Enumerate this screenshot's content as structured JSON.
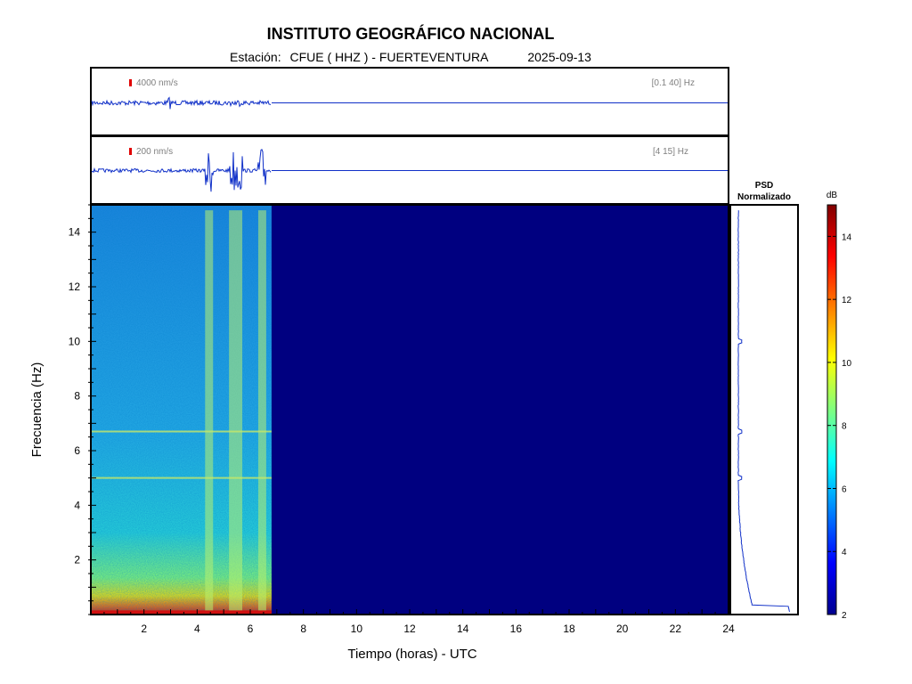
{
  "header": {
    "institution": "INSTITUTO GEOGRÁFICO NACIONAL",
    "station_label": "Estación:",
    "station": "CFUE ( HHZ ) - FUERTEVENTURA",
    "date": "2025-09-13"
  },
  "traces": [
    {
      "scale": "4000 nm/s",
      "band": "[0.1 40] Hz"
    },
    {
      "scale": "200 nm/s",
      "band": "[4 15] Hz"
    }
  ],
  "psd": {
    "title_line1": "PSD",
    "title_line2": "Normalizado"
  },
  "colorbar": {
    "unit": "dB",
    "ticks": [
      "2",
      "4",
      "6",
      "8",
      "10",
      "12",
      "14"
    ]
  },
  "chart_data": {
    "type": "heatmap",
    "xlabel": "Tiempo (horas) - UTC",
    "ylabel": "Frecuencia  (Hz)",
    "xlim": [
      0,
      24
    ],
    "ylim": [
      0,
      15
    ],
    "xticks": [
      2,
      4,
      6,
      8,
      10,
      12,
      14,
      16,
      18,
      20,
      22,
      24
    ],
    "yticks": [
      2,
      4,
      6,
      8,
      10,
      12,
      14
    ],
    "color_range_db": [
      2,
      15
    ],
    "data_end_hour": 6.8,
    "event_bands_hours": [
      [
        4.3,
        4.6
      ],
      [
        5.2,
        5.7
      ],
      [
        6.3,
        6.6
      ]
    ],
    "horizontal_lines_hz": [
      5.0,
      6.7
    ],
    "psd_peaks_hz": [
      5.0,
      6.7,
      10.0
    ]
  }
}
